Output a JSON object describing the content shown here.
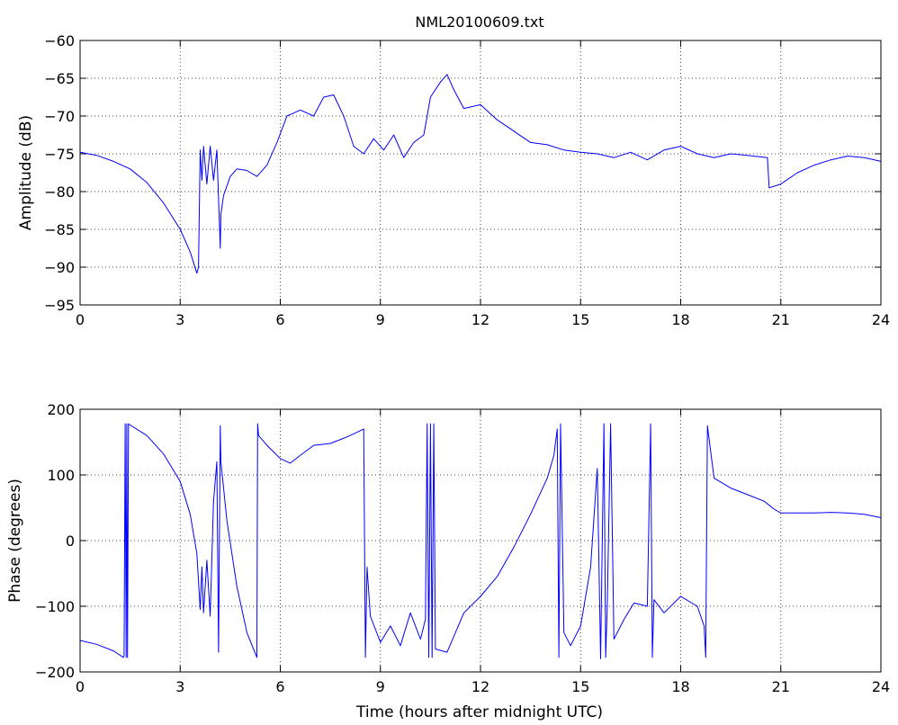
{
  "figure_title": "NML20100609.txt",
  "colors": {
    "series": "#0000ff",
    "axes": "#000000",
    "grid": "#444444",
    "background": "#ffffff"
  },
  "chart_data": [
    {
      "type": "line",
      "title": "NML20100609.txt",
      "xlabel": "",
      "ylabel": "Amplitude (dB)",
      "xlim": [
        0,
        24
      ],
      "ylim": [
        -95,
        -60
      ],
      "xticks": [
        0,
        3,
        6,
        9,
        12,
        15,
        18,
        21,
        24
      ],
      "yticks": [
        -95,
        -90,
        -85,
        -80,
        -75,
        -70,
        -65,
        -60
      ],
      "xtick_labels": [
        "0",
        "3",
        "6",
        "9",
        "12",
        "15",
        "18",
        "21",
        "24"
      ],
      "ytick_labels": [
        "−95",
        "−90",
        "−85",
        "−80",
        "−75",
        "−70",
        "−65",
        "−60"
      ],
      "grid": true,
      "series": [
        {
          "x": [
            0,
            0.5,
            1.0,
            1.5,
            2.0,
            2.5,
            3.0,
            3.3,
            3.5,
            3.55,
            3.6,
            3.65,
            3.7,
            3.8,
            3.9,
            4.0,
            4.1,
            4.2,
            4.22,
            4.3,
            4.5,
            4.7,
            5.0,
            5.3,
            5.6,
            5.9,
            6.2,
            6.6,
            7.0,
            7.3,
            7.6,
            7.9,
            8.2,
            8.5,
            8.8,
            9.1,
            9.4,
            9.7,
            10.0,
            10.3,
            10.5,
            10.8,
            11.0,
            11.2,
            11.5,
            12.0,
            12.5,
            13.0,
            13.5,
            14.0,
            14.5,
            15.0,
            15.5,
            16.0,
            16.5,
            17.0,
            17.5,
            18.0,
            18.5,
            19.0,
            19.5,
            20.0,
            20.6,
            20.65,
            21.0,
            21.5,
            22.0,
            22.5,
            23.0,
            23.5,
            24.0
          ],
          "y": [
            -74.8,
            -75.2,
            -76.0,
            -77.0,
            -78.8,
            -81.5,
            -85.0,
            -88.0,
            -90.8,
            -90.0,
            -74.5,
            -78.5,
            -74.0,
            -79.0,
            -74.0,
            -78.5,
            -74.5,
            -87.5,
            -83.0,
            -80.5,
            -78.0,
            -77.0,
            -77.2,
            -78.0,
            -76.5,
            -73.5,
            -70.0,
            -69.2,
            -70.0,
            -67.5,
            -67.2,
            -70.0,
            -74.0,
            -75.0,
            -73.0,
            -74.5,
            -72.5,
            -75.5,
            -73.5,
            -72.5,
            -67.5,
            -65.5,
            -64.5,
            -66.5,
            -69.0,
            -68.5,
            -70.5,
            -72.0,
            -73.5,
            -73.8,
            -74.5,
            -74.8,
            -75.0,
            -75.5,
            -74.8,
            -75.8,
            -74.5,
            -74.0,
            -75.0,
            -75.5,
            -75.0,
            -75.2,
            -75.5,
            -79.5,
            -79.0,
            -77.5,
            -76.5,
            -75.8,
            -75.3,
            -75.5,
            -76.0
          ]
        }
      ]
    },
    {
      "type": "line",
      "title": "",
      "xlabel": "Time (hours after midnight UTC)",
      "ylabel": "Phase (degrees)",
      "xlim": [
        0,
        24
      ],
      "ylim": [
        -200,
        200
      ],
      "xticks": [
        0,
        3,
        6,
        9,
        12,
        15,
        18,
        21,
        24
      ],
      "yticks": [
        -200,
        -100,
        0,
        100,
        200
      ],
      "xtick_labels": [
        "0",
        "3",
        "6",
        "9",
        "12",
        "15",
        "18",
        "21",
        "24"
      ],
      "ytick_labels": [
        "−200",
        "−100",
        "0",
        "100",
        "200"
      ],
      "grid": true,
      "series": [
        {
          "x": [
            0,
            0.5,
            1.0,
            1.3,
            1.32,
            1.35,
            1.38,
            1.4,
            1.42,
            1.45,
            1.5,
            2.0,
            2.5,
            3.0,
            3.3,
            3.5,
            3.6,
            3.65,
            3.7,
            3.8,
            3.9,
            4.0,
            4.1,
            4.15,
            4.2,
            4.22,
            4.4,
            4.7,
            5.0,
            5.3,
            5.32,
            5.35,
            5.6,
            6.0,
            6.3,
            6.6,
            7.0,
            7.5,
            8.0,
            8.3,
            8.5,
            8.55,
            8.6,
            8.7,
            9.0,
            9.3,
            9.6,
            9.9,
            10.2,
            10.35,
            10.4,
            10.45,
            10.5,
            10.55,
            10.6,
            10.65,
            11.0,
            11.5,
            12.0,
            12.5,
            13.0,
            13.5,
            14.0,
            14.2,
            14.3,
            14.35,
            14.4,
            14.5,
            14.7,
            15.0,
            15.3,
            15.5,
            15.6,
            15.7,
            15.75,
            15.8,
            15.9,
            16.0,
            16.3,
            16.6,
            17.0,
            17.1,
            17.15,
            17.2,
            17.5,
            18.0,
            18.5,
            18.7,
            18.75,
            18.8,
            19.0,
            19.5,
            20.0,
            20.5,
            20.8,
            21.0,
            21.5,
            22.0,
            22.5,
            23.0,
            23.5,
            24.0
          ],
          "y": [
            -152,
            -158,
            -168,
            -178,
            -175,
            178,
            -178,
            178,
            -178,
            178,
            176,
            160,
            132,
            90,
            40,
            -20,
            -105,
            -40,
            -110,
            -30,
            -115,
            60,
            120,
            -170,
            175,
            120,
            30,
            -70,
            -140,
            -178,
            178,
            160,
            145,
            125,
            118,
            130,
            145,
            148,
            158,
            165,
            170,
            -178,
            -40,
            -115,
            -155,
            -130,
            -160,
            -110,
            -150,
            -120,
            178,
            -178,
            178,
            -178,
            178,
            -165,
            -170,
            -110,
            -85,
            -55,
            -10,
            40,
            95,
            130,
            170,
            -178,
            178,
            -140,
            -160,
            -130,
            -40,
            110,
            -180,
            178,
            -178,
            -100,
            178,
            -150,
            -120,
            -95,
            -100,
            178,
            -178,
            -90,
            -110,
            -85,
            -100,
            -130,
            -178,
            175,
            95,
            80,
            70,
            60,
            48,
            42,
            42,
            42,
            43,
            42,
            40,
            35
          ]
        }
      ]
    }
  ]
}
